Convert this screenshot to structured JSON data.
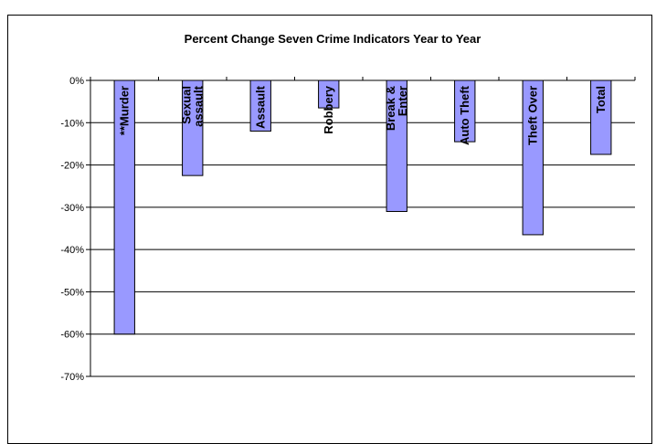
{
  "chart_data": {
    "type": "bar",
    "title": "Percent Change Seven Crime Indicators Year to Year",
    "xlabel": "",
    "ylabel": "",
    "categories": [
      [
        "**Murder"
      ],
      [
        "Sexual",
        "assault"
      ],
      [
        "Assault"
      ],
      [
        "Robbery"
      ],
      [
        "Break &",
        "Enter"
      ],
      [
        "Auto Theft"
      ],
      [
        "Theft Over"
      ],
      [
        "Total"
      ]
    ],
    "values": [
      -60,
      -22.5,
      -12,
      -6.5,
      -31,
      -14.5,
      -36.5,
      -17.5
    ],
    "ylim": [
      -70,
      0
    ],
    "yticks": [
      0,
      -10,
      -20,
      -30,
      -40,
      -50,
      -60,
      -70
    ],
    "ytick_labels": [
      "0%",
      "-10%",
      "-20%",
      "-30%",
      "-40%",
      "-50%",
      "-60%",
      "-70%"
    ],
    "grid": true,
    "colors": {
      "bar_fill": "#9999ff",
      "bar_stroke": "#000000",
      "grid": "#000000",
      "axis": "#000000"
    }
  }
}
